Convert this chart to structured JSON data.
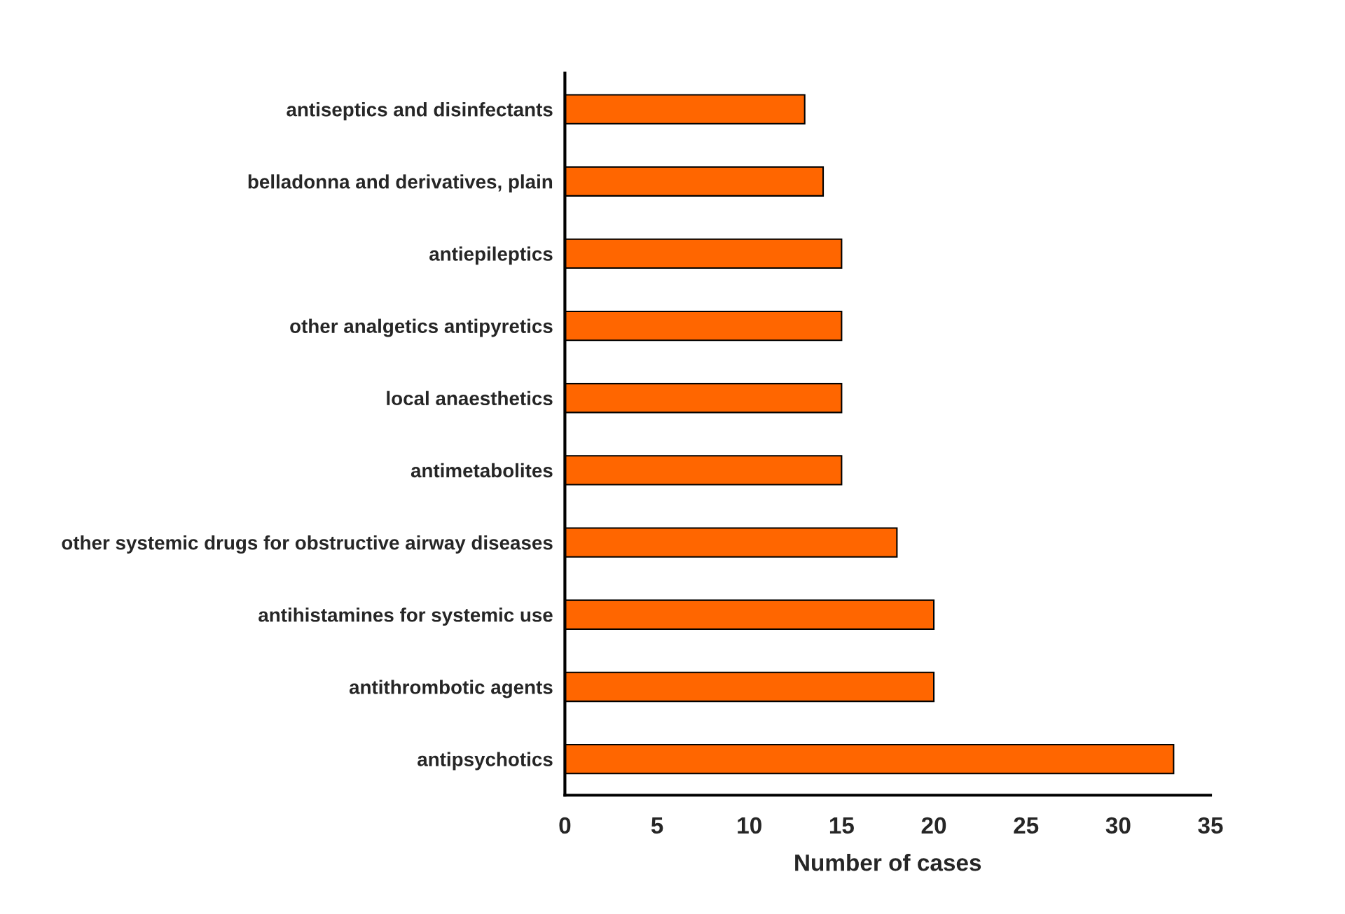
{
  "chart_data": {
    "type": "bar",
    "orientation": "horizontal",
    "xlabel": "Number of cases",
    "categories": [
      "antiseptics and disinfectants",
      "belladonna and derivatives, plain",
      "antiepileptics",
      "other analgetics antipyretics",
      "local anaesthetics",
      "antimetabolites",
      "other systemic drugs for obstructive airway diseases",
      "antihistamines for systemic use",
      "antithrombotic agents",
      "antipsychotics"
    ],
    "values": [
      13,
      14,
      15,
      15,
      15,
      15,
      18,
      20,
      20,
      33
    ],
    "color": "#ff6600",
    "xlim": [
      0,
      35
    ],
    "xticks": [
      0,
      5,
      10,
      15,
      20,
      25,
      30,
      35
    ],
    "grid": false,
    "legend": false
  }
}
